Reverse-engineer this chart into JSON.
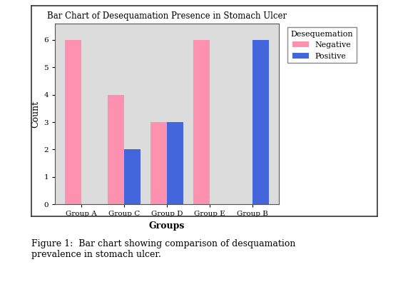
{
  "title": "Bar Chart of Desequamation Presence in Stomach Ulcer",
  "groups": [
    "Group A",
    "Group C",
    "Group D",
    "Group E",
    "Group B"
  ],
  "negative_values": [
    6,
    4,
    3,
    6,
    0
  ],
  "positive_values": [
    0,
    2,
    3,
    0,
    6
  ],
  "negative_color": "#FF91B0",
  "positive_color": "#4466DD",
  "xlabel": "Groups",
  "ylabel": "Count",
  "ylim": [
    0,
    6.6
  ],
  "yticks": [
    0,
    1,
    2,
    3,
    4,
    5,
    6
  ],
  "legend_title": "Desequemation",
  "legend_labels": [
    "Negative",
    "Positive"
  ],
  "plot_bg_color": "#DCDCDC",
  "fig_bg_color": "#FFFFFF",
  "bar_width": 0.38,
  "title_fontsize": 8.5,
  "axis_label_fontsize": 9,
  "tick_fontsize": 7.5,
  "legend_fontsize": 8,
  "caption": "Figure 1:  Bar chart showing comparison of desquamation\nprevalence in stomach ulcer."
}
